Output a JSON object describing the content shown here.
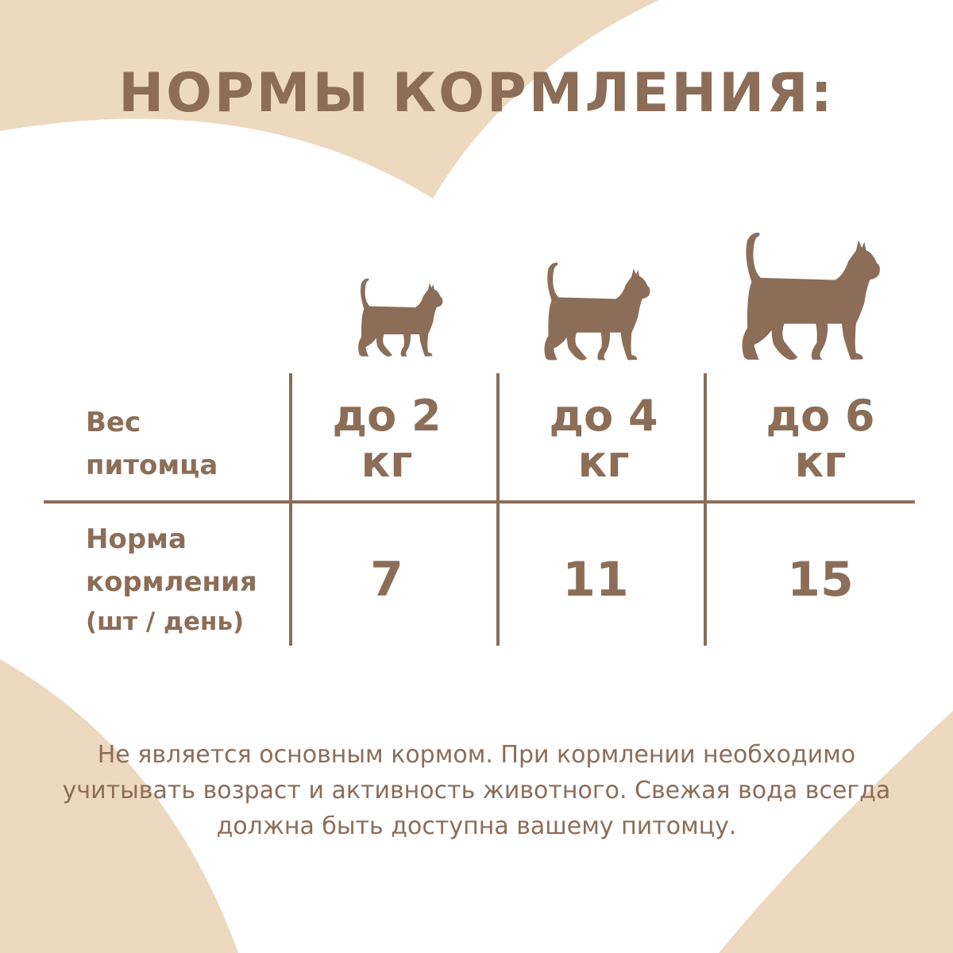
{
  "colors": {
    "brand": "#8C6D58",
    "background": "#EDD9BF",
    "panel": "#FFFFFF"
  },
  "title": "НОРМЫ КОРМЛЕНИЯ:",
  "table": {
    "row_labels": {
      "weight": [
        "Вес",
        "питомца"
      ],
      "norm": [
        "Норма",
        "кормления",
        "(шт / день)"
      ]
    },
    "columns": [
      {
        "icon": "kitten-icon",
        "weight": [
          "до 2",
          "кг"
        ],
        "norm": "7"
      },
      {
        "icon": "cat-icon",
        "weight": [
          "до 4",
          "кг"
        ],
        "norm": "11"
      },
      {
        "icon": "large-cat-icon",
        "weight": [
          "до 6",
          "кг"
        ],
        "norm": "15"
      }
    ]
  },
  "note": "Не является основным кормом. При кормлении необходимо учитывать возраст и активность животного. Свежая вода всегда должна быть доступна вашему питомцу."
}
